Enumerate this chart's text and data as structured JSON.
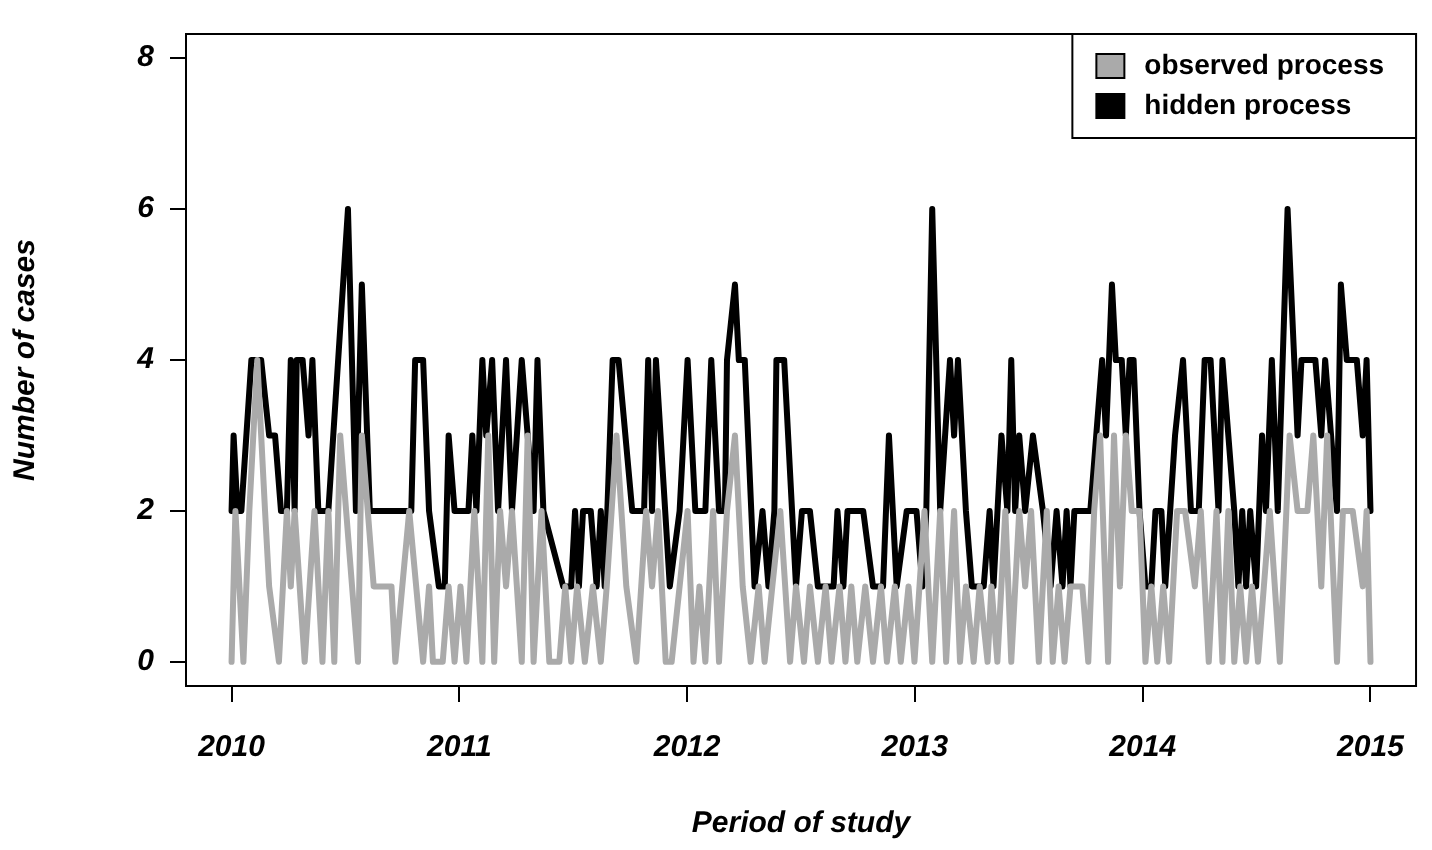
{
  "chart_data": {
    "type": "line",
    "xlabel": "Period of study",
    "ylabel": "Number of cases",
    "xlim": [
      2009.8,
      2015.2
    ],
    "ylim": [
      -0.32,
      8.32
    ],
    "xticks": [
      2010,
      2011,
      2012,
      2013,
      2014,
      2015
    ],
    "yticks": [
      0,
      2,
      4,
      6,
      8
    ],
    "legend": "top right",
    "series": [
      {
        "name": "observed process",
        "color": "#aaaaaa",
        "x": [
          2010,
          2010.017,
          2010.052,
          2010.078,
          2010.113,
          2010.147,
          2010.165,
          2010.208,
          2010.243,
          2010.26,
          2010.277,
          2010.321,
          2010.364,
          2010.399,
          2010.425,
          2010.451,
          2010.477,
          2010.555,
          2010.572,
          2010.624,
          2010.702,
          2010.719,
          2010.78,
          2010.841,
          2010.867,
          2010.884,
          2010.927,
          2010.953,
          2010.979,
          2011.005,
          2011.031,
          2011.066,
          2011.101,
          2011.127,
          2011.153,
          2011.179,
          2011.205,
          2011.231,
          2011.274,
          2011.3,
          2011.326,
          2011.361,
          2011.395,
          2011.439,
          2011.465,
          2011.491,
          2011.517,
          2011.551,
          2011.586,
          2011.621,
          2011.647,
          2011.69,
          2011.733,
          2011.777,
          2011.82,
          2011.846,
          2011.872,
          2011.906,
          2011.932,
          2011.967,
          2012.002,
          2012.028,
          2012.054,
          2012.08,
          2012.114,
          2012.14,
          2012.175,
          2012.21,
          2012.244,
          2012.279,
          2012.314,
          2012.34,
          2012.374,
          2012.409,
          2012.452,
          2012.478,
          2012.513,
          2012.539,
          2012.574,
          2012.608,
          2012.634,
          2012.669,
          2012.695,
          2012.721,
          2012.747,
          2012.782,
          2012.816,
          2012.851,
          2012.877,
          2012.912,
          2012.938,
          2012.972,
          2012.998,
          2013.042,
          2013.076,
          2013.111,
          2013.137,
          2013.172,
          2013.198,
          2013.224,
          2013.258,
          2013.284,
          2013.319,
          2013.336,
          2013.362,
          2013.397,
          2013.423,
          2013.458,
          2013.484,
          2013.51,
          2013.544,
          2013.579,
          2013.605,
          2013.631,
          2013.657,
          2013.683,
          2013.735,
          2013.761,
          2013.787,
          2013.813,
          2013.848,
          2013.874,
          2013.9,
          2013.926,
          2013.952,
          2013.986,
          2014.012,
          2014.038,
          2014.064,
          2014.09,
          2014.116,
          2014.151,
          2014.186,
          2014.229,
          2014.255,
          2014.29,
          2014.324,
          2014.35,
          2014.376,
          2014.402,
          2014.428,
          2014.454,
          2014.48,
          2014.506,
          2014.532,
          2014.558,
          2014.602,
          2014.645,
          2014.68,
          2014.723,
          2014.749,
          2014.784,
          2014.81,
          2014.853,
          2014.879,
          2014.922,
          2014.966,
          2014.983,
          2015
        ],
        "values": [
          0,
          2,
          0,
          2,
          4,
          2,
          1,
          0,
          2,
          1,
          2,
          0,
          2,
          0,
          2,
          0,
          3,
          0,
          3,
          1,
          1,
          0,
          2,
          0,
          1,
          0,
          0,
          1,
          0,
          1,
          0,
          2,
          0,
          3,
          0,
          2,
          1,
          2,
          0,
          3,
          0,
          2,
          0,
          0,
          1,
          0,
          1,
          0,
          1,
          0,
          1,
          3,
          1,
          0,
          2,
          1,
          2,
          0,
          0,
          1,
          2,
          0,
          1,
          0,
          2,
          0,
          2,
          3,
          1,
          0,
          1,
          0,
          1,
          2,
          0,
          1,
          0,
          1,
          0,
          1,
          0,
          1,
          0,
          1,
          0,
          1,
          0,
          1,
          0,
          1,
          0,
          1,
          0,
          2,
          0,
          2,
          0,
          2,
          0,
          1,
          0,
          1,
          0,
          1,
          0,
          2,
          0,
          2,
          1,
          2,
          0,
          2,
          0,
          1,
          0,
          1,
          1,
          0,
          2,
          3,
          0,
          3,
          1,
          3,
          2,
          2,
          0,
          1,
          0,
          1,
          0,
          2,
          2,
          1,
          2,
          0,
          2,
          0,
          2,
          0,
          1,
          0,
          1,
          0,
          1,
          2,
          0,
          3,
          2,
          2,
          3,
          1,
          3,
          0,
          2,
          2,
          1,
          2,
          0
        ]
      },
      {
        "name": "hidden process",
        "color": "#000000",
        "x": [
          2010,
          2010.009,
          2010.026,
          2010.043,
          2010.087,
          2010.13,
          2010.165,
          2010.191,
          2010.217,
          2010.243,
          2010.26,
          2010.277,
          2010.286,
          2010.312,
          2010.338,
          2010.355,
          2010.381,
          2010.425,
          2010.511,
          2010.546,
          2010.572,
          2010.607,
          2010.789,
          2010.806,
          2010.841,
          2010.867,
          2010.91,
          2010.936,
          2010.953,
          2010.979,
          2011.04,
          2011.057,
          2011.075,
          2011.101,
          2011.118,
          2011.144,
          2011.17,
          2011.205,
          2011.231,
          2011.274,
          2011.326,
          2011.343,
          2011.369,
          2011.456,
          2011.491,
          2011.508,
          2011.525,
          2011.543,
          2011.577,
          2011.603,
          2011.621,
          2011.638,
          2011.673,
          2011.699,
          2011.759,
          2011.811,
          2011.829,
          2011.846,
          2011.863,
          2011.924,
          2011.967,
          2012.002,
          2012.036,
          2012.08,
          2012.106,
          2012.14,
          2012.166,
          2012.175,
          2012.21,
          2012.227,
          2012.253,
          2012.296,
          2012.331,
          2012.357,
          2012.383,
          2012.392,
          2012.426,
          2012.478,
          2012.504,
          2012.539,
          2012.574,
          2012.643,
          2012.66,
          2012.686,
          2012.704,
          2012.773,
          2012.816,
          2012.86,
          2012.886,
          2012.92,
          2012.964,
          2013.007,
          2013.033,
          2013.05,
          2013.076,
          2013.111,
          2013.154,
          2013.172,
          2013.189,
          2013.224,
          2013.25,
          2013.302,
          2013.328,
          2013.345,
          2013.38,
          2013.406,
          2013.423,
          2013.44,
          2013.458,
          2013.484,
          2013.518,
          2013.562,
          2013.596,
          2013.622,
          2013.648,
          2013.666,
          2013.683,
          2013.7,
          2013.77,
          2013.796,
          2013.822,
          2013.839,
          2013.865,
          2013.882,
          2013.908,
          2013.926,
          2013.943,
          2013.96,
          2013.986,
          2014.012,
          2014.038,
          2014.056,
          2014.082,
          2014.099,
          2014.142,
          2014.177,
          2014.212,
          2014.246,
          2014.272,
          2014.298,
          2014.333,
          2014.35,
          2014.376,
          2014.402,
          2014.42,
          2014.437,
          2014.454,
          2014.472,
          2014.498,
          2014.524,
          2014.541,
          2014.567,
          2014.593,
          2014.636,
          2014.68,
          2014.697,
          2014.758,
          2014.784,
          2014.801,
          2014.853,
          2014.87,
          2014.896,
          2014.94,
          2014.966,
          2014.983,
          2015
        ],
        "values": [
          2,
          3,
          2,
          2,
          4,
          4,
          3,
          3,
          2,
          2,
          4,
          2,
          4,
          4,
          3,
          4,
          2,
          2,
          6,
          2,
          5,
          2,
          2,
          4,
          4,
          2,
          1,
          1,
          3,
          2,
          2,
          3,
          2,
          4,
          3,
          4,
          2,
          4,
          2,
          4,
          2,
          4,
          2,
          1,
          1,
          2,
          1,
          2,
          2,
          1,
          2,
          1,
          4,
          4,
          2,
          2,
          4,
          2,
          4,
          1,
          2,
          4,
          2,
          2,
          4,
          2,
          2,
          4,
          5,
          4,
          4,
          1,
          2,
          1,
          2,
          4,
          4,
          1,
          2,
          2,
          1,
          1,
          2,
          1,
          2,
          2,
          1,
          1,
          3,
          1,
          2,
          2,
          1,
          2,
          6,
          2,
          4,
          3,
          4,
          2,
          1,
          1,
          2,
          1,
          3,
          2,
          4,
          2,
          3,
          2,
          3,
          2,
          1,
          2,
          1,
          2,
          1,
          2,
          2,
          3,
          4,
          3,
          5,
          4,
          4,
          3,
          4,
          4,
          2,
          1,
          1,
          2,
          2,
          1,
          3,
          4,
          2,
          2,
          4,
          4,
          2,
          4,
          3,
          2,
          1,
          2,
          1,
          2,
          1,
          3,
          2,
          4,
          2,
          6,
          3,
          4,
          4,
          3,
          4,
          2,
          5,
          4,
          4,
          3,
          4,
          2
        ]
      }
    ]
  }
}
